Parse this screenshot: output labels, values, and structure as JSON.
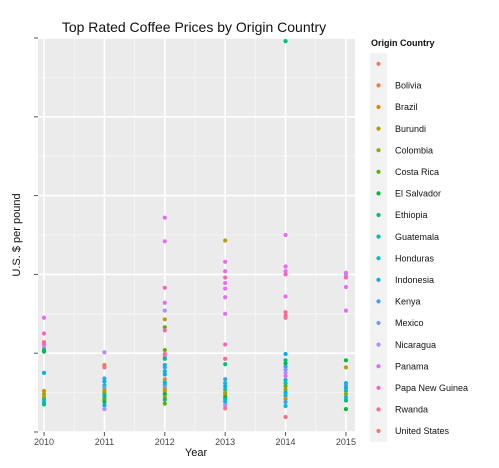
{
  "chart_data": {
    "type": "scatter",
    "title": "Top Rated Coffee Prices by Origin Country",
    "xlabel": "Year",
    "ylabel": "U.S. $ per pound",
    "x_ticks": [
      "2010",
      "2011",
      "2012",
      "2013",
      "2014",
      "2015"
    ],
    "xlim": [
      2009.9,
      2015.15
    ],
    "ylim": [
      0,
      50
    ],
    "grid": true,
    "legend": {
      "title": "Origin Country",
      "placement": "right",
      "entries": [
        {
          "name": "",
          "color": "#F8766D"
        },
        {
          "name": "Bolivia",
          "color": "#EE8040"
        },
        {
          "name": "Brazil",
          "color": "#DB8E00"
        },
        {
          "name": "Burundi",
          "color": "#B69D00"
        },
        {
          "name": "Colombia",
          "color": "#9AA800"
        },
        {
          "name": "Costa Rica",
          "color": "#5BB300"
        },
        {
          "name": "El Salvador",
          "color": "#00BA38"
        },
        {
          "name": "Ethiopia",
          "color": "#00BF7D"
        },
        {
          "name": "Guatemala",
          "color": "#00C0AF"
        },
        {
          "name": "Honduras",
          "color": "#00BCD8"
        },
        {
          "name": "Indonesia",
          "color": "#00B0F6"
        },
        {
          "name": "Kenya",
          "color": "#35A2FF"
        },
        {
          "name": "Mexico",
          "color": "#7F96FF"
        },
        {
          "name": "Nicaragua",
          "color": "#B18BFF"
        },
        {
          "name": "Panama",
          "color": "#E76BF3"
        },
        {
          "name": "Papa New Guinea",
          "color": "#FF62BC"
        },
        {
          "name": "Rwanda",
          "color": "#FA6E8D"
        },
        {
          "name": "United States",
          "color": "#F8766D"
        }
      ]
    },
    "points": [
      {
        "x": 2010,
        "y": 14.5,
        "s": "Panama"
      },
      {
        "x": 2010,
        "y": 12.5,
        "s": "Papa New Guinea"
      },
      {
        "x": 2010,
        "y": 11.4,
        "s": "Rwanda"
      },
      {
        "x": 2010,
        "y": 11.1,
        "s": "Papa New Guinea"
      },
      {
        "x": 2010,
        "y": 10.7,
        "s": "Nicaragua"
      },
      {
        "x": 2010,
        "y": 10.4,
        "s": "Ethiopia"
      },
      {
        "x": 2010,
        "y": 10.2,
        "s": "El Salvador"
      },
      {
        "x": 2010,
        "y": 7.5,
        "s": "Indonesia"
      },
      {
        "x": 2010,
        "y": 5.2,
        "s": "Brazil"
      },
      {
        "x": 2010,
        "y": 4.8,
        "s": "Colombia"
      },
      {
        "x": 2010,
        "y": 4.4,
        "s": "Burundi"
      },
      {
        "x": 2010,
        "y": 4.1,
        "s": "Guatemala"
      },
      {
        "x": 2010,
        "y": 3.8,
        "s": "Honduras"
      },
      {
        "x": 2010,
        "y": 3.5,
        "s": "Ethiopia"
      },
      {
        "x": 2011,
        "y": 10.1,
        "s": "Nicaragua"
      },
      {
        "x": 2011,
        "y": 8.5,
        "s": "Bolivia"
      },
      {
        "x": 2011,
        "y": 8.2,
        "s": "Rwanda"
      },
      {
        "x": 2011,
        "y": 6.8,
        "s": "Kenya"
      },
      {
        "x": 2011,
        "y": 6.4,
        "s": "Indonesia"
      },
      {
        "x": 2011,
        "y": 5.9,
        "s": "Honduras"
      },
      {
        "x": 2011,
        "y": 5.6,
        "s": "Mexico"
      },
      {
        "x": 2011,
        "y": 5.3,
        "s": "Burundi"
      },
      {
        "x": 2011,
        "y": 5.0,
        "s": "Colombia"
      },
      {
        "x": 2011,
        "y": 4.7,
        "s": "Guatemala"
      },
      {
        "x": 2011,
        "y": 4.4,
        "s": "Ethiopia"
      },
      {
        "x": 2011,
        "y": 4.1,
        "s": "Costa Rica"
      },
      {
        "x": 2011,
        "y": 3.8,
        "s": "El Salvador"
      },
      {
        "x": 2011,
        "y": 3.4,
        "s": "Indonesia"
      },
      {
        "x": 2011,
        "y": 2.9,
        "s": "Nicaragua"
      },
      {
        "x": 2012,
        "y": 27.2,
        "s": "Panama"
      },
      {
        "x": 2012,
        "y": 24.2,
        "s": "Panama"
      },
      {
        "x": 2012,
        "y": 18.3,
        "s": "Papa New Guinea"
      },
      {
        "x": 2012,
        "y": 16.4,
        "s": "Panama"
      },
      {
        "x": 2012,
        "y": 15.4,
        "s": "Nicaragua"
      },
      {
        "x": 2012,
        "y": 14.3,
        "s": "Burundi"
      },
      {
        "x": 2012,
        "y": 13.3,
        "s": "Costa Rica"
      },
      {
        "x": 2012,
        "y": 12.9,
        "s": "Papa New Guinea"
      },
      {
        "x": 2012,
        "y": 10.4,
        "s": "Costa Rica"
      },
      {
        "x": 2012,
        "y": 9.9,
        "s": "Rwanda"
      },
      {
        "x": 2012,
        "y": 9.6,
        "s": "Panama"
      },
      {
        "x": 2012,
        "y": 9.3,
        "s": "Ethiopia"
      },
      {
        "x": 2012,
        "y": 8.5,
        "s": "Honduras"
      },
      {
        "x": 2012,
        "y": 8.2,
        "s": "Kenya"
      },
      {
        "x": 2012,
        "y": 7.7,
        "s": "Indonesia"
      },
      {
        "x": 2012,
        "y": 7.3,
        "s": "Indonesia"
      },
      {
        "x": 2012,
        "y": 6.7,
        "s": "Bolivia"
      },
      {
        "x": 2012,
        "y": 6.3,
        "s": "Guatemala"
      },
      {
        "x": 2012,
        "y": 6.0,
        "s": "Honduras"
      },
      {
        "x": 2012,
        "y": 5.7,
        "s": "Mexico"
      },
      {
        "x": 2012,
        "y": 5.4,
        "s": "Brazil"
      },
      {
        "x": 2012,
        "y": 5.1,
        "s": "Burundi"
      },
      {
        "x": 2012,
        "y": 4.8,
        "s": "El Salvador"
      },
      {
        "x": 2012,
        "y": 4.4,
        "s": "Colombia"
      },
      {
        "x": 2012,
        "y": 4.1,
        "s": "Ethiopia"
      },
      {
        "x": 2012,
        "y": 3.6,
        "s": "Costa Rica"
      },
      {
        "x": 2013,
        "y": 24.3,
        "s": "Burundi"
      },
      {
        "x": 2013,
        "y": 21.6,
        "s": "Panama"
      },
      {
        "x": 2013,
        "y": 20.4,
        "s": "Panama"
      },
      {
        "x": 2013,
        "y": 19.6,
        "s": "Papa New Guinea"
      },
      {
        "x": 2013,
        "y": 18.9,
        "s": "Panama"
      },
      {
        "x": 2013,
        "y": 18.2,
        "s": "Panama"
      },
      {
        "x": 2013,
        "y": 17.1,
        "s": "Panama"
      },
      {
        "x": 2013,
        "y": 15.0,
        "s": "Panama"
      },
      {
        "x": 2013,
        "y": 11.1,
        "s": "Papa New Guinea"
      },
      {
        "x": 2013,
        "y": 9.3,
        "s": "Rwanda"
      },
      {
        "x": 2013,
        "y": 8.6,
        "s": "Ethiopia"
      },
      {
        "x": 2013,
        "y": 6.7,
        "s": "Kenya"
      },
      {
        "x": 2013,
        "y": 6.2,
        "s": "Honduras"
      },
      {
        "x": 2013,
        "y": 5.8,
        "s": "Indonesia"
      },
      {
        "x": 2013,
        "y": 5.4,
        "s": "Guatemala"
      },
      {
        "x": 2013,
        "y": 5.0,
        "s": "Burundi"
      },
      {
        "x": 2013,
        "y": 4.7,
        "s": "Colombia"
      },
      {
        "x": 2013,
        "y": 4.4,
        "s": "El Salvador"
      },
      {
        "x": 2013,
        "y": 4.1,
        "s": "Honduras"
      },
      {
        "x": 2013,
        "y": 3.8,
        "s": "Indonesia"
      },
      {
        "x": 2013,
        "y": 3.4,
        "s": "Nicaragua"
      },
      {
        "x": 2013,
        "y": 3.0,
        "s": "Rwanda"
      },
      {
        "x": 2014,
        "y": 49.6,
        "s": "Ethiopia"
      },
      {
        "x": 2014,
        "y": 25.0,
        "s": "Panama"
      },
      {
        "x": 2014,
        "y": 21.0,
        "s": "Panama"
      },
      {
        "x": 2014,
        "y": 20.4,
        "s": "Panama"
      },
      {
        "x": 2014,
        "y": 20.0,
        "s": "Papa New Guinea"
      },
      {
        "x": 2014,
        "y": 17.2,
        "s": "Panama"
      },
      {
        "x": 2014,
        "y": 15.2,
        "s": "Rwanda"
      },
      {
        "x": 2014,
        "y": 14.8,
        "s": "Papa New Guinea"
      },
      {
        "x": 2014,
        "y": 14.5,
        "s": "Rwanda"
      },
      {
        "x": 2014,
        "y": 9.9,
        "s": "Indonesia"
      },
      {
        "x": 2014,
        "y": 9.1,
        "s": "Ethiopia"
      },
      {
        "x": 2014,
        "y": 8.7,
        "s": "El Salvador"
      },
      {
        "x": 2014,
        "y": 8.3,
        "s": "Kenya"
      },
      {
        "x": 2014,
        "y": 7.9,
        "s": "Mexico"
      },
      {
        "x": 2014,
        "y": 7.5,
        "s": "Nicaragua"
      },
      {
        "x": 2014,
        "y": 7.1,
        "s": "Panama"
      },
      {
        "x": 2014,
        "y": 6.6,
        "s": "Honduras"
      },
      {
        "x": 2014,
        "y": 6.2,
        "s": "Guatemala"
      },
      {
        "x": 2014,
        "y": 5.8,
        "s": "Costa Rica"
      },
      {
        "x": 2014,
        "y": 5.4,
        "s": "Colombia"
      },
      {
        "x": 2014,
        "y": 5.0,
        "s": "Indonesia"
      },
      {
        "x": 2014,
        "y": 4.6,
        "s": "Honduras"
      },
      {
        "x": 2014,
        "y": 4.2,
        "s": "Brazil"
      },
      {
        "x": 2014,
        "y": 3.8,
        "s": "Kenya"
      },
      {
        "x": 2014,
        "y": 3.3,
        "s": "Honduras"
      },
      {
        "x": 2014,
        "y": 1.9,
        "s": "Rwanda"
      },
      {
        "x": 2015,
        "y": 20.2,
        "s": "Panama"
      },
      {
        "x": 2015,
        "y": 19.9,
        "s": "Nicaragua"
      },
      {
        "x": 2015,
        "y": 19.6,
        "s": "Papa New Guinea"
      },
      {
        "x": 2015,
        "y": 18.4,
        "s": "Panama"
      },
      {
        "x": 2015,
        "y": 15.4,
        "s": "Panama"
      },
      {
        "x": 2015,
        "y": 9.1,
        "s": "El Salvador"
      },
      {
        "x": 2015,
        "y": 8.2,
        "s": "Burundi"
      },
      {
        "x": 2015,
        "y": 6.2,
        "s": "Honduras"
      },
      {
        "x": 2015,
        "y": 5.9,
        "s": "Kenya"
      },
      {
        "x": 2015,
        "y": 5.6,
        "s": "Indonesia"
      },
      {
        "x": 2015,
        "y": 5.2,
        "s": "Guatemala"
      },
      {
        "x": 2015,
        "y": 4.8,
        "s": "Colombia"
      },
      {
        "x": 2015,
        "y": 4.4,
        "s": "Honduras"
      },
      {
        "x": 2015,
        "y": 4.0,
        "s": "Ethiopia"
      },
      {
        "x": 2015,
        "y": 2.9,
        "s": "El Salvador"
      }
    ]
  }
}
